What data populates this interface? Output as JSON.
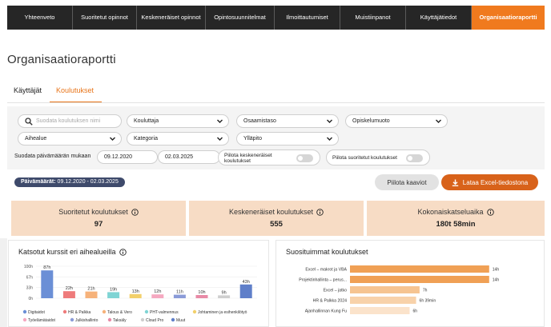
{
  "nav": {
    "items": [
      {
        "label": "Yhteenveto",
        "active": false
      },
      {
        "label": "Suoritetut opinnot",
        "active": false
      },
      {
        "label": "Keskeneräiset opinnot",
        "active": false
      },
      {
        "label": "Opintosuunnitelmat",
        "active": false
      },
      {
        "label": "Ilmoittautumiset",
        "active": false
      },
      {
        "label": "Muistiinpanot",
        "active": false
      },
      {
        "label": "Käyttäjätiedot",
        "active": false
      },
      {
        "label": "Organisaatioraportti",
        "active": true
      }
    ]
  },
  "page": {
    "title": "Organisaatioraportti"
  },
  "tabs": [
    {
      "label": "Käyttäjät",
      "active": false
    },
    {
      "label": "Koulutukset",
      "active": true
    }
  ],
  "filters": {
    "search_placeholder": "Suodata koulutuksen nimi",
    "dropdowns": {
      "kouluttaja": "Kouluttaja",
      "osaamistaso": "Osaamistaso",
      "opiskelumuoto": "Opiskelumuoto",
      "aihealue": "Aihealue",
      "kategoria": "Kategoria",
      "yllapito": "Ylläpito"
    },
    "date_label": "Suodata päivämäärän mukaan",
    "date_from": "09.12.2020",
    "date_sep": "-",
    "date_to": "02.03.2025",
    "hide_unfinished": {
      "label": "Piilota keskeneräiset koulutukset",
      "on": false
    },
    "hide_completed": {
      "label": "Piilota suoritetut koulutukset",
      "on": false
    }
  },
  "date_badge": {
    "prefix": "Päivämäärät:",
    "range": "09.12.2020 - 02.03.2025"
  },
  "buttons": {
    "hide_charts": "Piilota kaaviot",
    "download_excel": "Lataa Excel-tiedostona"
  },
  "kpis": [
    {
      "label": "Suoritetut koulutukset",
      "value": "97"
    },
    {
      "label": "Keskeneräiset koulutukset",
      "value": "555"
    },
    {
      "label": "Kokonaiskatseluaika",
      "value": "180t 58min"
    }
  ],
  "colors": {
    "accent": "#f07a1e",
    "nav_bg": "#262626",
    "kpi_bg": "#f7dcc5",
    "badge_bg": "#3e4a6b"
  },
  "charts": {
    "topics_title": "Katsotut kurssit eri aihealueilla",
    "popular_title": "Suosituimmat koulutukset"
  },
  "chart_data": [
    {
      "type": "bar",
      "title": "Katsotut kurssit eri aihealueilla",
      "y_ticks": [
        "100h",
        "67h",
        "33h",
        "0h"
      ],
      "ylim": [
        0,
        100
      ],
      "categories": [
        "Digitaidot",
        "HR & Palkka",
        "Talous & Vero",
        "PHT-valmennus",
        "Johtaminen ja esihenkilötyö",
        "Työelämätaidot",
        "Julkishallinto",
        "Taksäly",
        "Cloud Pro",
        "Muut"
      ],
      "values": [
        87,
        22,
        21,
        19,
        13,
        12,
        11,
        10,
        9,
        43
      ],
      "value_labels": [
        "87h",
        "22h",
        "21h",
        "19h",
        "13h",
        "12h",
        "11h",
        "10h",
        "9h",
        "43h"
      ],
      "bar_colors": [
        "#6b8fd6",
        "#ee7b7b",
        "#f6b27a",
        "#7fd4d4",
        "#f2d06b",
        "#f5a8c0",
        "#8a9bd8",
        "#e88aa6",
        "#cfcfcf",
        "#5f7fc9"
      ],
      "legend_position": "bottom"
    },
    {
      "type": "bar",
      "orientation": "horizontal",
      "title": "Suosituimmat koulutukset",
      "categories": [
        "Excel – makrot ja VBA",
        "Projektinhallinta – perus...",
        "Excel – jatko",
        "HR & Palkka 2024",
        "Ajanhallinnan Kung Fu"
      ],
      "values": [
        14,
        14,
        7,
        6.65,
        6
      ],
      "value_labels": [
        "14h",
        "14h",
        "7h",
        "6h 39min",
        "6h"
      ],
      "xlim": [
        0,
        14.5
      ],
      "bar_colors": [
        "#f0a055",
        "#f0a055",
        "#f6c491",
        "#f8d2aa",
        "#fbe3cb"
      ]
    }
  ]
}
